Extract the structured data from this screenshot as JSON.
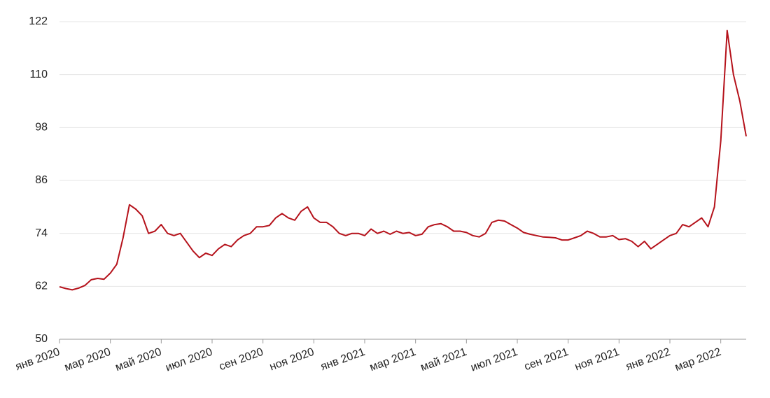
{
  "chart_data": {
    "type": "line",
    "color": "#b5121b",
    "grid": true,
    "ylim": [
      50,
      122
    ],
    "yticks": [
      50,
      62,
      74,
      86,
      98,
      110,
      122
    ],
    "categories": [
      "янв 2020",
      null,
      null,
      null,
      null,
      null,
      null,
      null,
      "мар 2020",
      null,
      null,
      null,
      null,
      null,
      null,
      null,
      "май 2020",
      null,
      null,
      null,
      null,
      null,
      null,
      null,
      "июл 2020",
      null,
      null,
      null,
      null,
      null,
      null,
      null,
      "сен 2020",
      null,
      null,
      null,
      null,
      null,
      null,
      null,
      "ноя 2020",
      null,
      null,
      null,
      null,
      null,
      null,
      null,
      "янв 2021",
      null,
      null,
      null,
      null,
      null,
      null,
      null,
      "мар 2021",
      null,
      null,
      null,
      null,
      null,
      null,
      null,
      "май 2021",
      null,
      null,
      null,
      null,
      null,
      null,
      null,
      "июл 2021",
      null,
      null,
      null,
      null,
      null,
      null,
      null,
      "сен 2021",
      null,
      null,
      null,
      null,
      null,
      null,
      null,
      "ноя 2021",
      null,
      null,
      null,
      null,
      null,
      null,
      null,
      "янв 2022",
      null,
      null,
      null,
      null,
      null,
      null,
      null,
      "мар 2022",
      null,
      null,
      null,
      null
    ],
    "values": [
      61.9,
      61.5,
      61.2,
      61.6,
      62.2,
      63.5,
      63.8,
      63.6,
      65,
      67,
      73,
      80.5,
      79.5,
      78,
      74,
      74.5,
      76,
      74,
      73.5,
      74,
      72,
      70,
      68.5,
      69.5,
      69,
      70.5,
      71.5,
      71,
      72.5,
      73.5,
      74,
      75.5,
      75.5,
      75.8,
      77.5,
      78.5,
      77.5,
      77,
      79,
      80,
      77.5,
      76.5,
      76.5,
      75.5,
      74,
      73.5,
      74,
      74,
      73.5,
      75,
      74,
      74.5,
      73.8,
      74.5,
      74,
      74.2,
      73.5,
      73.8,
      75.5,
      76,
      76.2,
      75.5,
      74.5,
      74.5,
      74.2,
      73.5,
      73.2,
      74,
      76.5,
      77,
      76.8,
      76,
      75.2,
      74.2,
      73.8,
      73.5,
      73.2,
      73.1,
      73,
      72.5,
      72.5,
      73,
      73.5,
      74.5,
      74,
      73.2,
      73.2,
      73.5,
      72.6,
      72.8,
      72.2,
      71,
      72.2,
      70.5,
      71.5,
      72.5,
      73.5,
      74,
      76,
      75.5,
      76.5,
      77.5,
      75.5,
      80,
      95,
      120,
      110,
      104,
      96
    ]
  }
}
